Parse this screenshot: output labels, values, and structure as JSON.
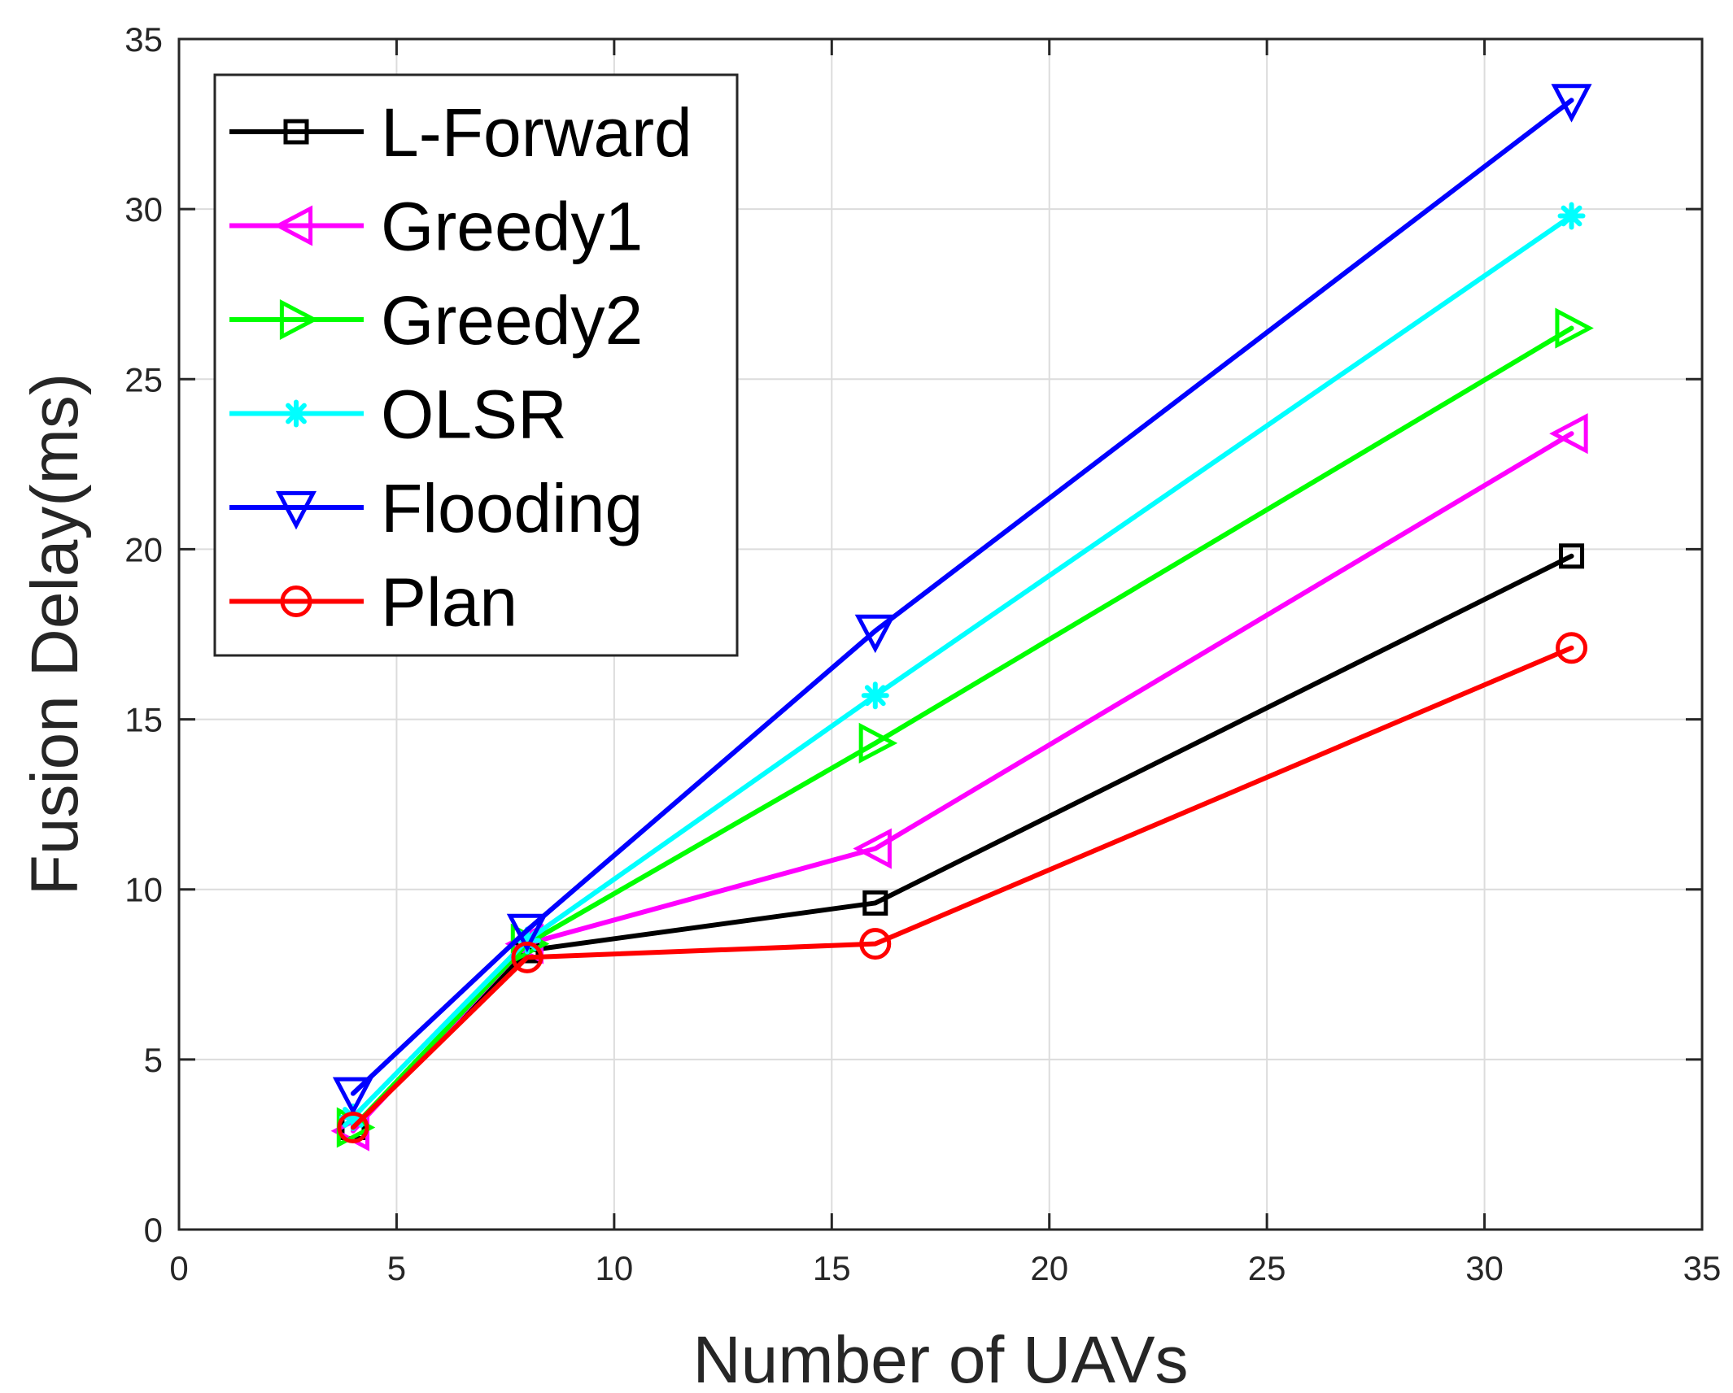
{
  "chart_data": {
    "type": "line",
    "title": "",
    "xlabel": "Number of UAVs",
    "ylabel": "Fusion Delay(ms)",
    "xlim": [
      0,
      35
    ],
    "ylim": [
      0,
      35
    ],
    "xticks": [
      0,
      5,
      10,
      15,
      20,
      25,
      30,
      35
    ],
    "yticks": [
      0,
      5,
      10,
      15,
      20,
      25,
      30,
      35
    ],
    "xtick_labels": [
      "0",
      "5",
      "10",
      "15",
      "20",
      "25",
      "30",
      "35"
    ],
    "ytick_labels": [
      "0",
      "5",
      "10",
      "15",
      "20",
      "25",
      "30",
      "35"
    ],
    "grid": true,
    "legend_position": "top-left",
    "x": [
      4,
      8,
      16,
      32
    ],
    "series": [
      {
        "name": "L-Forward",
        "values": [
          3.0,
          8.2,
          9.6,
          19.8
        ],
        "color": "#000000",
        "marker": "square"
      },
      {
        "name": "Greedy1",
        "values": [
          2.9,
          8.4,
          11.2,
          23.4
        ],
        "color": "#ff00ff",
        "marker": "triangle-left"
      },
      {
        "name": "Greedy2",
        "values": [
          3.0,
          8.4,
          14.3,
          26.5
        ],
        "color": "#00ff00",
        "marker": "triangle-right"
      },
      {
        "name": "OLSR",
        "values": [
          3.3,
          8.5,
          15.7,
          29.8
        ],
        "color": "#00ffff",
        "marker": "asterisk"
      },
      {
        "name": "Flooding",
        "values": [
          4.0,
          8.8,
          17.6,
          33.2
        ],
        "color": "#0000ff",
        "marker": "triangle-down"
      },
      {
        "name": "Plan",
        "values": [
          3.0,
          8.0,
          8.4,
          17.1
        ],
        "color": "#ff0000",
        "marker": "circle"
      }
    ]
  }
}
